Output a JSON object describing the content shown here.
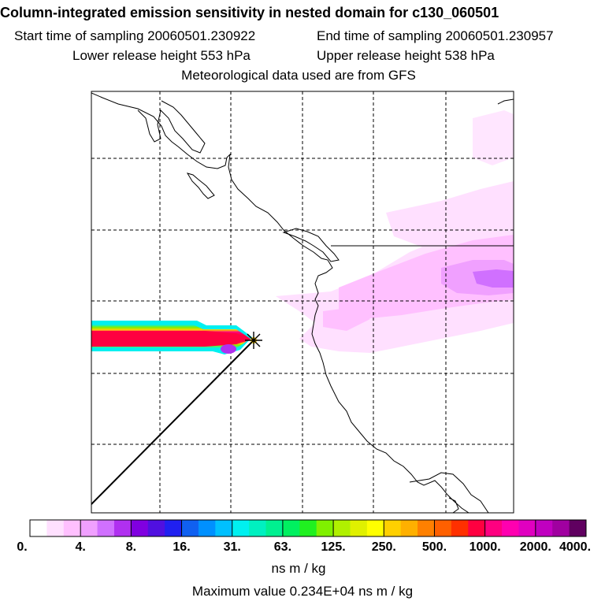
{
  "header": {
    "title": "Column-integrated emission sensitivity in nested domain for c130_060501",
    "start_label": "Start time of sampling 20060501.230922",
    "end_label": "End time of sampling 20060501.230957",
    "lower_label": "Lower release height  553 hPa",
    "upper_label": "Upper release height  538 hPa",
    "met_label": "Meteorological data used are from GFS"
  },
  "legend": {
    "ticks": [
      "0.",
      "4.",
      "8.",
      "16.",
      "31.",
      "63.",
      "125.",
      "250.",
      "500.",
      "1000.",
      "2000.",
      "4000."
    ],
    "colors": [
      "#ffffff",
      "#ffe0ff",
      "#ffc0ff",
      "#f0a0ff",
      "#d070ff",
      "#b030f0",
      "#8000e0",
      "#5010e0",
      "#2020f0",
      "#1060f0",
      "#0090ff",
      "#00c0ff",
      "#00f0f0",
      "#00f0c0",
      "#00f090",
      "#00f060",
      "#20f020",
      "#80f000",
      "#b0f000",
      "#e0f000",
      "#ffff00",
      "#ffd000",
      "#ffb000",
      "#ff8000",
      "#ff6000",
      "#ff3000",
      "#ff0040",
      "#ff0080",
      "#ff00b0",
      "#e000c0",
      "#c000c0",
      "#a000a0",
      "#600060"
    ],
    "units": "ns m / kg",
    "max_value": "Maximum value  0.234E+04 ns m / kg"
  },
  "map": {
    "release_marker": "release-point-star"
  }
}
